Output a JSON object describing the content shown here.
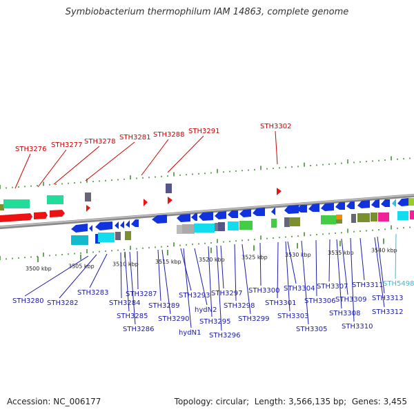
{
  "title": "Symbiobacterium thermophilum IAM 14863, complete genome",
  "footer": {
    "accession_label": "Accession:",
    "accession": "NC_006177",
    "topology_label": "Topology:",
    "topology": "circular",
    "length_label": "Length:",
    "length": "3,566,135 bp",
    "genes_label": "Genes:",
    "genes": "3,455"
  },
  "colors": {
    "backbone": "#8a8a8a",
    "tick": "#2e7d1e",
    "label_top": "#cc0000",
    "label_bottom": "#1a1aaa",
    "label_special": "#33bbdd"
  },
  "kbp_ticks": [
    "3500 kbp",
    "3505 kbp",
    "3510 kbp",
    "3515 kbp",
    "3520 kbp",
    "3525 kbp",
    "3530 kbp",
    "3535 kbp",
    "3540 kbp"
  ],
  "top_genes": [
    "STH3276",
    "STH3277",
    "STH3278",
    "STH3281",
    "STH3288",
    "STH3291",
    "STH3302"
  ],
  "bottom_genes": [
    "STH3280",
    "STH3282",
    "STH3283",
    "STH3284",
    "STH3285",
    "STH3286",
    "STH3287",
    "STH3289",
    "STH3290",
    "STH3293",
    "hydN2",
    "hydN1",
    "STH3295",
    "STH3296",
    "STH3297",
    "STH3298",
    "STH3299",
    "STH3300",
    "STH3301",
    "STH3303",
    "STH3304",
    "STH3305",
    "STH3306",
    "STH3307",
    "STH3308",
    "STH3309",
    "STH3310",
    "STH3311",
    "STH3312",
    "STH3313",
    "STH5498"
  ]
}
